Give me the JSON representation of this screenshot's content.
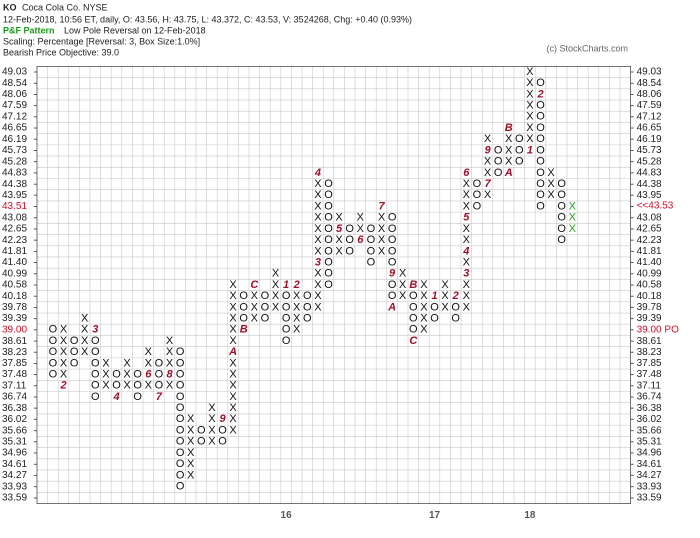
{
  "header": {
    "symbol": "KO",
    "name": "Coca Cola Co.  NYSE",
    "quote": "12-Feb-2018, 10:56 ET, daily, O: 43.56, H: 43.75, L: 43.372, C: 43.53, V: 3524268, Chg: +0.40 (0.93%)",
    "pattern_label": "P&F Pattern",
    "pattern": "Low Pole Reversal on 12-Feb-2018",
    "scaling": "Scaling: Percentage [Reversal: 3, Box Size:1.0%]",
    "objective": "Bearish Price Objective: 39.0",
    "copyright": "(c) StockCharts.com"
  },
  "chart_data": {
    "type": "point-and-figure",
    "log_scale": true,
    "grid": true,
    "color": "#111111",
    "marker_color": "#a0102a",
    "highlight_color": "#d0102a",
    "ylim": [
      33.59,
      49.03
    ],
    "yticks": [
      33.59,
      33.93,
      34.27,
      34.61,
      34.96,
      35.31,
      35.66,
      36.02,
      36.38,
      36.74,
      37.11,
      37.48,
      37.85,
      38.23,
      38.61,
      {
        "value": 39,
        "label": "39.00"
      },
      39.39,
      39.78,
      40.18,
      40.58,
      40.99,
      {
        "value": 41.4,
        "label": "41.40"
      },
      41.81,
      42.23,
      42.65,
      43.08,
      43.51,
      43.95,
      44.38,
      44.83,
      45.28,
      45.73,
      46.19,
      46.65,
      47.12,
      47.59,
      48.06,
      48.54,
      49.03
    ],
    "highlight": [
      43.51,
      39
    ],
    "annotations": [
      {
        "text": "<<43.53",
        "value": 43.53
      },
      {
        "text": "39.00 PO",
        "value": 39
      }
    ],
    "year_labels": [
      {
        "label": "16",
        "column": 22
      },
      {
        "label": "17",
        "column": 36
      },
      {
        "label": "18",
        "column": 45
      }
    ],
    "columns": [
      {
        "type": "O",
        "low": 37.48,
        "high": 39,
        "markers": []
      },
      {
        "type": "X",
        "low": 37.11,
        "high": 39,
        "markers": [
          {
            "price": 37.11,
            "label": "2"
          }
        ]
      },
      {
        "type": "O",
        "low": 37.85,
        "high": 38.61,
        "markers": []
      },
      {
        "type": "X",
        "low": 38.23,
        "high": 39.39,
        "markers": []
      },
      {
        "type": "O",
        "low": 36.74,
        "high": 39,
        "markers": [
          {
            "price": 39,
            "label": "3"
          }
        ]
      },
      {
        "type": "X",
        "low": 37.11,
        "high": 37.85,
        "markers": []
      },
      {
        "type": "O",
        "low": 36.74,
        "high": 37.48,
        "markers": [
          {
            "price": 36.74,
            "label": "4"
          }
        ]
      },
      {
        "type": "X",
        "low": 37.11,
        "high": 37.85,
        "markers": []
      },
      {
        "type": "O",
        "low": 36.74,
        "high": 37.48,
        "markers": []
      },
      {
        "type": "X",
        "low": 37.11,
        "high": 38.23,
        "markers": [
          {
            "price": 37.48,
            "label": "6"
          }
        ]
      },
      {
        "type": "O",
        "low": 36.74,
        "high": 37.85,
        "markers": [
          {
            "price": 36.74,
            "label": "7"
          }
        ]
      },
      {
        "type": "X",
        "low": 37.11,
        "high": 38.61,
        "markers": [
          {
            "price": 37.48,
            "label": "8"
          }
        ]
      },
      {
        "type": "O",
        "low": 33.93,
        "high": 38.23,
        "markers": []
      },
      {
        "type": "X",
        "low": 34.27,
        "high": 36.02,
        "markers": []
      },
      {
        "type": "O",
        "low": 35.31,
        "high": 35.66,
        "markers": []
      },
      {
        "type": "X",
        "low": 35.31,
        "high": 36.38,
        "markers": []
      },
      {
        "type": "O",
        "low": 35.31,
        "high": 36.02,
        "markers": [
          {
            "price": 36.02,
            "label": "9"
          }
        ]
      },
      {
        "type": "X",
        "low": 35.66,
        "high": 40.58,
        "markers": [
          {
            "price": 38.23,
            "label": "A"
          }
        ]
      },
      {
        "type": "O",
        "low": 39,
        "high": 40.18,
        "markers": [
          {
            "price": 39,
            "label": "B"
          }
        ]
      },
      {
        "type": "X",
        "low": 39.39,
        "high": 40.58,
        "markers": [
          {
            "price": 40.58,
            "label": "C"
          }
        ]
      },
      {
        "type": "O",
        "low": 39.39,
        "high": 40.18,
        "markers": []
      },
      {
        "type": "X",
        "low": 39.78,
        "high": 40.99,
        "markers": []
      },
      {
        "type": "O",
        "low": 38.61,
        "high": 40.58,
        "markers": [
          {
            "price": 40.58,
            "label": "1"
          }
        ]
      },
      {
        "type": "X",
        "low": 39,
        "high": 40.58,
        "markers": [
          {
            "price": 40.58,
            "label": "2"
          }
        ]
      },
      {
        "type": "O",
        "low": 39.39,
        "high": 40.18,
        "markers": []
      },
      {
        "type": "X",
        "low": 39.78,
        "high": 44.83,
        "markers": [
          {
            "price": 41.4,
            "label": "3"
          },
          {
            "price": 44.83,
            "label": "4"
          }
        ]
      },
      {
        "type": "O",
        "low": 40.58,
        "high": 44.38,
        "markers": []
      },
      {
        "type": "X",
        "low": 41.81,
        "high": 43.08,
        "markers": [
          {
            "price": 42.65,
            "label": "5"
          }
        ]
      },
      {
        "type": "O",
        "low": 41.81,
        "high": 42.65,
        "markers": []
      },
      {
        "type": "X",
        "low": 42.23,
        "high": 43.08,
        "markers": [
          {
            "price": 42.23,
            "label": "6"
          }
        ]
      },
      {
        "type": "O",
        "low": 41.4,
        "high": 42.65,
        "markers": []
      },
      {
        "type": "X",
        "low": 41.81,
        "high": 43.51,
        "markers": [
          {
            "price": 43.51,
            "label": "7"
          }
        ]
      },
      {
        "type": "O",
        "low": 39.78,
        "high": 43.08,
        "markers": [
          {
            "price": 40.99,
            "label": "9"
          },
          {
            "price": 39.78,
            "label": "A"
          }
        ]
      },
      {
        "type": "X",
        "low": 40.18,
        "high": 40.99,
        "markers": []
      },
      {
        "type": "O",
        "low": 38.61,
        "high": 40.58,
        "markers": [
          {
            "price": 40.58,
            "label": "B"
          },
          {
            "price": 38.61,
            "label": "C"
          }
        ]
      },
      {
        "type": "X",
        "low": 39,
        "high": 40.58,
        "markers": []
      },
      {
        "type": "O",
        "low": 39.39,
        "high": 40.18,
        "markers": [
          {
            "price": 40.18,
            "label": "1"
          }
        ]
      },
      {
        "type": "X",
        "low": 39.78,
        "high": 40.58,
        "markers": []
      },
      {
        "type": "O",
        "low": 39.39,
        "high": 40.18,
        "markers": [
          {
            "price": 40.18,
            "label": "2"
          }
        ]
      },
      {
        "type": "X",
        "low": 39.78,
        "high": 44.83,
        "markers": [
          {
            "price": 40.99,
            "label": "3"
          },
          {
            "price": 41.81,
            "label": "4"
          },
          {
            "price": 43.08,
            "label": "5"
          },
          {
            "price": 44.83,
            "label": "6"
          }
        ]
      },
      {
        "type": "O",
        "low": 43.51,
        "high": 44.38,
        "markers": []
      },
      {
        "type": "X",
        "low": 43.95,
        "high": 46.19,
        "markers": [
          {
            "price": 44.38,
            "label": "7"
          },
          {
            "price": 45.73,
            "label": "9"
          }
        ]
      },
      {
        "type": "O",
        "low": 44.83,
        "high": 45.73,
        "markers": []
      },
      {
        "type": "X",
        "low": 44.83,
        "high": 46.65,
        "markers": [
          {
            "price": 44.83,
            "label": "A"
          },
          {
            "price": 46.65,
            "label": "B"
          }
        ]
      },
      {
        "type": "O",
        "low": 45.28,
        "high": 46.19,
        "markers": []
      },
      {
        "type": "X",
        "low": 45.73,
        "high": 49.03,
        "markers": [
          {
            "price": 45.73,
            "label": "1"
          }
        ]
      },
      {
        "type": "O",
        "low": 43.51,
        "high": 48.54,
        "markers": [
          {
            "price": 48.06,
            "label": "2"
          }
        ]
      },
      {
        "type": "X",
        "low": 43.95,
        "high": 44.83,
        "markers": []
      },
      {
        "type": "O",
        "low": 42.23,
        "high": 44.38,
        "markers": []
      },
      {
        "type": "X",
        "low": 42.65,
        "high": 43.51,
        "markers": [],
        "color": "#22a022"
      }
    ]
  }
}
